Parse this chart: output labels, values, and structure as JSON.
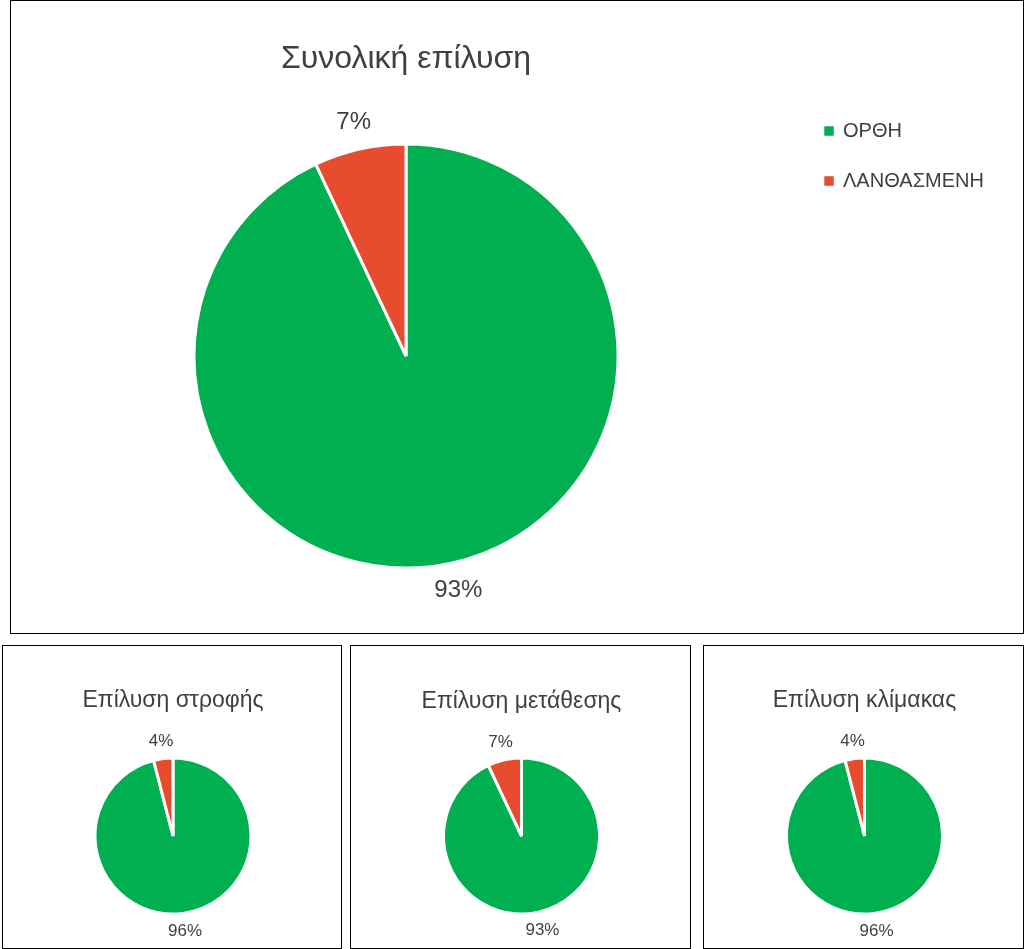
{
  "chart_data": [
    {
      "type": "pie",
      "title": "Συνολική επίλυση",
      "categories": [
        "ΟΡΘΗ",
        "ΛΑΝΘΑΣΜΕΝΗ"
      ],
      "values": [
        93,
        7
      ],
      "colors": [
        "#00b050",
        "#e84c2e"
      ],
      "value_labels": [
        "93%",
        "7%"
      ],
      "legend": "right"
    },
    {
      "type": "pie",
      "title": "Επίλυση στροφής",
      "categories": [
        null,
        null
      ],
      "values": [
        96,
        4
      ],
      "colors": [
        "#00b050",
        "#e84c2e"
      ],
      "value_labels": [
        "96%",
        "4%"
      ]
    },
    {
      "type": "pie",
      "title": "Επίλυση μετάθεσης",
      "categories": [
        null,
        null
      ],
      "values": [
        93,
        7
      ],
      "colors": [
        "#00b050",
        "#e84c2e"
      ],
      "value_labels": [
        "93%",
        "7%"
      ]
    },
    {
      "type": "pie",
      "title": "Επίλυση κλίμακας",
      "categories": [
        null,
        null
      ],
      "values": [
        96,
        4
      ],
      "colors": [
        "#00b050",
        "#e84c2e"
      ],
      "value_labels": [
        "96%",
        "4%"
      ]
    }
  ]
}
